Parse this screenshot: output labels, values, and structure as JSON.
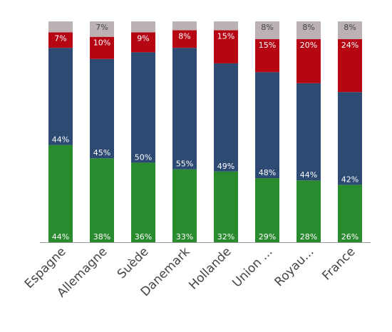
{
  "chart_data": {
    "type": "bar",
    "stacked": true,
    "categories": [
      "Espagne",
      "Allemagne",
      "Suède",
      "Danemark",
      "Hollande",
      "Union ...",
      "Royau...",
      "France"
    ],
    "series": [
      {
        "values": [
          44,
          38,
          36,
          33,
          32,
          29,
          28,
          26
        ],
        "labels": [
          "44%",
          "38%",
          "36%",
          "33%",
          "32%",
          "29%",
          "28%",
          "26%"
        ],
        "color": "#2a8a2e",
        "label_color": "#ffffff",
        "label_position": "bottom"
      },
      {
        "values": [
          44,
          45,
          50,
          55,
          49,
          48,
          44,
          42
        ],
        "labels": [
          "44%",
          "45%",
          "50%",
          "55%",
          "49%",
          "48%",
          "44%",
          "42%"
        ],
        "color": "#2c4a72",
        "label_color": "#ffffff",
        "label_position": "bottom"
      },
      {
        "values": [
          7,
          10,
          9,
          8,
          15,
          15,
          20,
          24
        ],
        "labels": [
          "7%",
          "10%",
          "9%",
          "8%",
          "15%",
          "15%",
          "20%",
          "24%"
        ],
        "color": "#b60614",
        "label_color": "#ffffff",
        "label_position": "top"
      },
      {
        "values": [
          5,
          7,
          5,
          4,
          4,
          8,
          8,
          8
        ],
        "labels": [
          "",
          "7%",
          "",
          "",
          "",
          "8%",
          "8%",
          "8%"
        ],
        "color": "#bcb2b3",
        "label_color": "#444444",
        "label_position": "top"
      }
    ],
    "ylim": [
      0,
      100
    ],
    "grid": false,
    "legend": "none"
  }
}
